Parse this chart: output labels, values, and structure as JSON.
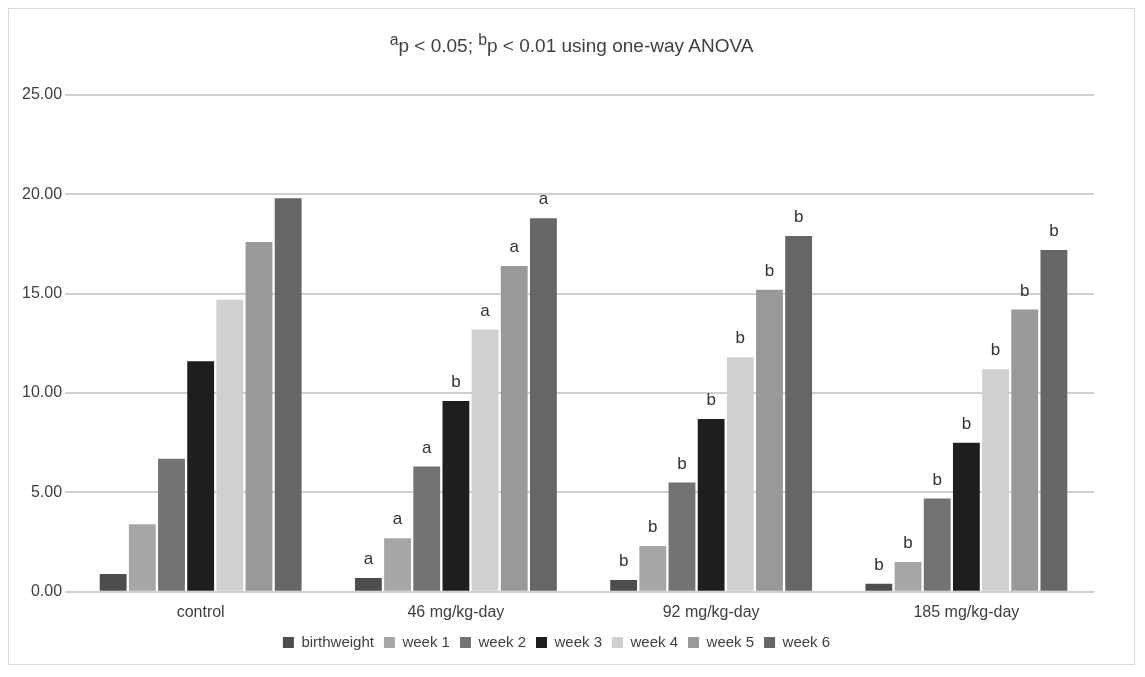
{
  "chart_data": {
    "type": "bar",
    "title": "$^{a}$p < 0.05; $^{b}$p < 0.01 using one-way ANOVA",
    "categories": [
      "control",
      "46 mg/kg-day",
      "92 mg/kg-day",
      "185 mg/kg-day"
    ],
    "series": [
      {
        "name": "birthweight",
        "color": "#4d4d4d",
        "values": [
          0.9,
          0.7,
          0.6,
          0.4
        ],
        "value_labels": [
          null,
          "a",
          "b",
          "b"
        ]
      },
      {
        "name": "week 1",
        "color": "#a6a6a6",
        "values": [
          3.4,
          2.7,
          2.3,
          1.5
        ],
        "value_labels": [
          null,
          "a",
          "b",
          "b"
        ]
      },
      {
        "name": "week 2",
        "color": "#737373",
        "values": [
          6.7,
          6.3,
          5.5,
          4.7
        ],
        "value_labels": [
          null,
          "a",
          "b",
          "b"
        ]
      },
      {
        "name": "week 3",
        "color": "#1e1e1e",
        "values": [
          11.6,
          9.6,
          8.7,
          7.5
        ],
        "value_labels": [
          null,
          "b",
          "b",
          "b"
        ]
      },
      {
        "name": "week 4",
        "color": "#d0d0d0",
        "values": [
          14.7,
          13.2,
          11.8,
          11.2
        ],
        "value_labels": [
          null,
          "a",
          "b",
          "b"
        ]
      },
      {
        "name": "week 5",
        "color": "#999999",
        "values": [
          17.6,
          16.4,
          15.2,
          14.2
        ],
        "value_labels": [
          null,
          "a",
          "b",
          "b"
        ]
      },
      {
        "name": "week 6",
        "color": "#666666",
        "values": [
          19.8,
          18.8,
          17.9,
          17.2
        ],
        "value_labels": [
          null,
          "a",
          "b",
          "b"
        ]
      }
    ],
    "ylim": [
      0,
      25
    ],
    "yticks": [
      {
        "value": 0,
        "label": "0.00"
      },
      {
        "value": 5,
        "label": "5.00"
      },
      {
        "value": 10,
        "label": "10.00"
      },
      {
        "value": 15,
        "label": "15.00"
      },
      {
        "value": 20,
        "label": "20.00"
      },
      {
        "value": 25,
        "label": "25.00"
      }
    ],
    "grid": "y",
    "legend": "bottom"
  }
}
